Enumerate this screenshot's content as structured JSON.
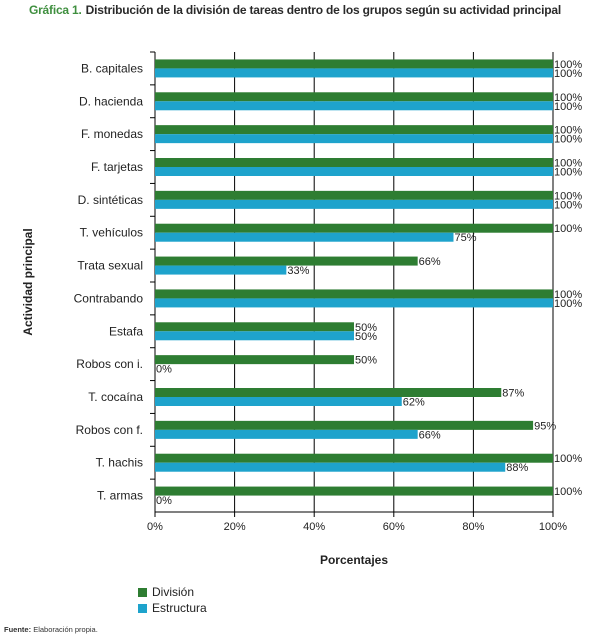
{
  "title": {
    "lead": "Gráfica 1.",
    "text": "Distribución de la división de tareas dentro de los grupos según su actividad principal"
  },
  "source": {
    "label": "Fuente:",
    "text": "Elaboración propia."
  },
  "colors": {
    "division": "#2e7d32",
    "estructura": "#1ea3cc",
    "grid": "#000000"
  },
  "chart_data": {
    "type": "bar",
    "orientation": "horizontal",
    "xlabel": "Porcentajes",
    "ylabel": "Actividad principal",
    "xlim": [
      0,
      100
    ],
    "xticks": [
      "0%",
      "20%",
      "40%",
      "60%",
      "80%",
      "100%"
    ],
    "grid": true,
    "legend": "bottom-left",
    "categories": [
      "B. capitales",
      "D. hacienda",
      "F. monedas",
      "F. tarjetas",
      "D. sintéticas",
      "T. vehículos",
      "Trata sexual",
      "Contrabando",
      "Estafa",
      "Robos con i.",
      "T. cocaína",
      "Robos con f.",
      "T. hachis",
      "T. armas"
    ],
    "series": [
      {
        "name": "División",
        "values": [
          100,
          100,
          100,
          100,
          100,
          100,
          66,
          100,
          50,
          50,
          87,
          95,
          100,
          100
        ],
        "labels": [
          "100%",
          "100%",
          "100%",
          "100%",
          "100%",
          "100%",
          "66%",
          "100%",
          "50%",
          "50%",
          "87%",
          "95%",
          "100%",
          "100%"
        ]
      },
      {
        "name": "Estructura",
        "values": [
          100,
          100,
          100,
          100,
          100,
          75,
          33,
          100,
          50,
          0,
          62,
          66,
          88,
          0
        ],
        "labels": [
          "100%",
          "100%",
          "100%",
          "100%",
          "100%",
          "75%",
          "33%",
          "100%",
          "50%",
          "0%",
          "62%",
          "66%",
          "88%",
          "0%"
        ]
      }
    ]
  }
}
